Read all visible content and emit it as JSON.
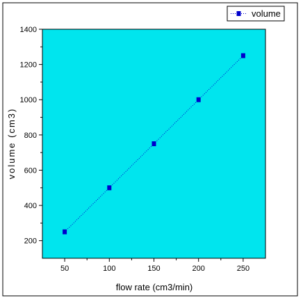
{
  "chart_data": {
    "type": "scatter",
    "title": "",
    "xlabel": "flow rate (cm3/min)",
    "ylabel": "volume (cm3)",
    "xlim": [
      25,
      275
    ],
    "ylim": [
      100,
      1400
    ],
    "xticks": [
      50,
      100,
      150,
      200,
      250
    ],
    "yticks": [
      200,
      400,
      600,
      800,
      1000,
      1200,
      1400
    ],
    "grid": false,
    "legend_position": "top-right",
    "series": [
      {
        "name": "volume",
        "x": [
          50,
          100,
          150,
          200,
          250
        ],
        "y": [
          250,
          500,
          750,
          1000,
          1250
        ]
      }
    ]
  },
  "colors": {
    "plot_background": "#00e5ee",
    "marker": "#0000cc",
    "line": "#0000cc",
    "axis": "#000000"
  }
}
